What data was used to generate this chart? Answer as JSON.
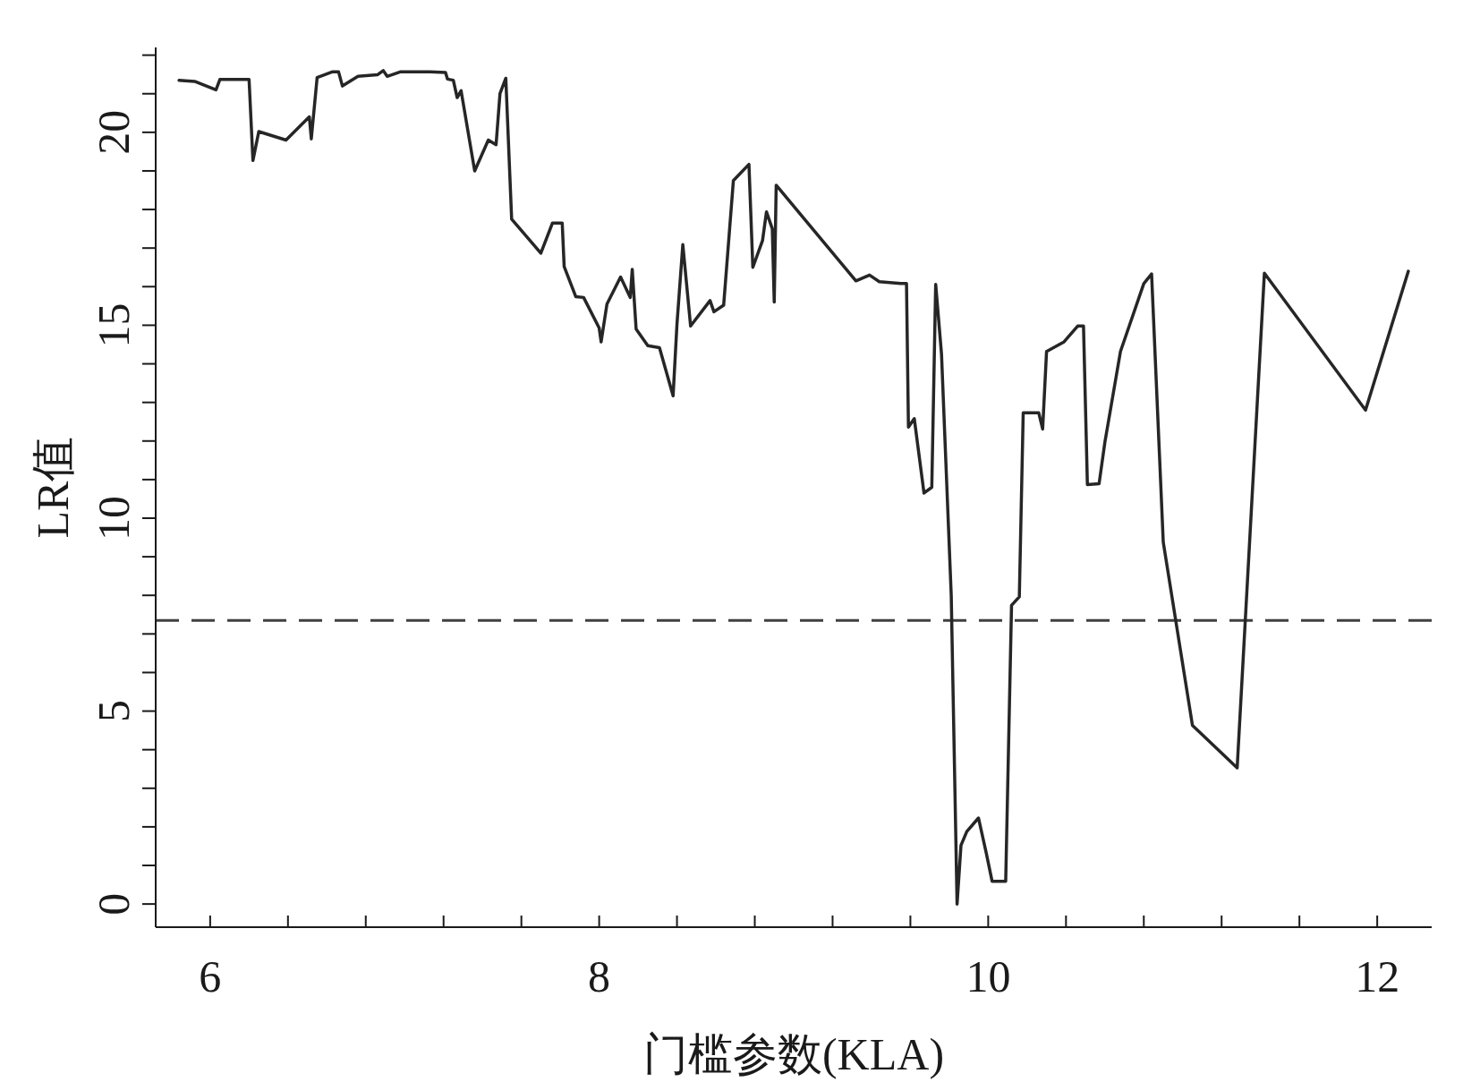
{
  "chart_data": {
    "type": "line",
    "xlabel": "门槛参数(KLA)",
    "ylabel": "LR值",
    "x": [
      5.84,
      5.92,
      6.03,
      6.05,
      6.2,
      6.22,
      6.25,
      6.39,
      6.51,
      6.52,
      6.55,
      6.63,
      6.66,
      6.68,
      6.76,
      6.86,
      6.89,
      6.91,
      6.98,
      7.13,
      7.21,
      7.22,
      7.25,
      7.27,
      7.29,
      7.36,
      7.43,
      7.47,
      7.49,
      7.52,
      7.55,
      7.7,
      7.76,
      7.81,
      7.82,
      7.88,
      7.92,
      8.0,
      8.01,
      8.04,
      8.11,
      8.16,
      8.17,
      8.19,
      8.25,
      8.31,
      8.38,
      8.4,
      8.43,
      8.47,
      8.57,
      8.59,
      8.64,
      8.69,
      8.77,
      8.79,
      8.84,
      8.86,
      8.89,
      8.9,
      8.91,
      9.32,
      9.39,
      9.44,
      9.55,
      9.58,
      9.59,
      9.62,
      9.67,
      9.71,
      9.73,
      9.76,
      9.81,
      9.84,
      9.86,
      9.89,
      9.95,
      9.99,
      10.02,
      10.09,
      10.12,
      10.16,
      10.18,
      10.26,
      10.28,
      10.3,
      10.39,
      10.46,
      10.49,
      10.51,
      10.57,
      10.6,
      10.68,
      10.8,
      10.84,
      10.9,
      11.05,
      11.28,
      11.42,
      11.94,
      12.16
    ],
    "series": [
      {
        "color": "#262626",
        "values": [
          21.35,
          21.32,
          21.1,
          21.37,
          21.37,
          19.27,
          20.02,
          19.8,
          20.4,
          19.83,
          21.42,
          21.57,
          21.57,
          21.2,
          21.45,
          21.49,
          21.6,
          21.45,
          21.57,
          21.57,
          21.55,
          21.38,
          21.35,
          20.9,
          21.08,
          19.0,
          19.8,
          19.68,
          21.0,
          21.4,
          17.75,
          16.87,
          17.65,
          17.65,
          16.52,
          15.74,
          15.72,
          14.93,
          14.57,
          15.55,
          16.25,
          15.72,
          16.45,
          14.9,
          14.47,
          14.42,
          13.17,
          15.03,
          17.09,
          14.98,
          15.64,
          15.35,
          15.52,
          18.75,
          19.17,
          16.5,
          17.2,
          17.94,
          17.5,
          15.6,
          18.63,
          16.15,
          16.3,
          16.13,
          16.08,
          16.08,
          12.36,
          12.58,
          10.65,
          10.8,
          16.06,
          14.25,
          8.0,
          0.0,
          1.52,
          1.88,
          2.23,
          1.32,
          0.59,
          0.59,
          7.74,
          7.96,
          12.73,
          12.73,
          12.31,
          14.32,
          14.57,
          14.98,
          14.98,
          10.87,
          10.89,
          11.97,
          14.32,
          16.08,
          16.33,
          9.38,
          4.63,
          3.53,
          16.35,
          12.8,
          16.4
        ]
      }
    ],
    "xlim": [
      5.72,
      12.28
    ],
    "ylim": [
      -0.6,
      22.2
    ],
    "xticks": [
      6,
      {
        "value": 6.4,
        "label": null
      },
      {
        "value": 6.8,
        "label": null
      },
      {
        "value": 7.2,
        "label": null
      },
      {
        "value": 7.6,
        "label": null
      },
      8,
      {
        "value": 8.4,
        "label": null
      },
      {
        "value": 8.8,
        "label": null
      },
      {
        "value": 9.2,
        "label": null
      },
      {
        "value": 9.6,
        "label": null
      },
      10,
      {
        "value": 10.4,
        "label": null
      },
      {
        "value": 10.8,
        "label": null
      },
      {
        "value": 11.2,
        "label": null
      },
      {
        "value": 11.6,
        "label": null
      },
      12
    ],
    "yticks": [
      0,
      {
        "value": 1,
        "label": null
      },
      {
        "value": 2,
        "label": null
      },
      {
        "value": 3,
        "label": null
      },
      {
        "value": 4,
        "label": null
      },
      5,
      {
        "value": 6,
        "label": null
      },
      {
        "value": 7,
        "label": null
      },
      {
        "value": 8,
        "label": null
      },
      {
        "value": 9,
        "label": null
      },
      10,
      {
        "value": 11,
        "label": null
      },
      {
        "value": 12,
        "label": null
      },
      {
        "value": 13,
        "label": null
      },
      {
        "value": 14,
        "label": null
      },
      15,
      {
        "value": 16,
        "label": null
      },
      {
        "value": 17,
        "label": null
      },
      {
        "value": 18,
        "label": null
      },
      {
        "value": 19,
        "label": null
      },
      20,
      {
        "value": 21,
        "label": null
      },
      {
        "value": 22,
        "label": null
      }
    ],
    "ref_lines": [
      {
        "axis": "y",
        "value": 7.35,
        "color": "#404040",
        "line_style": "dashed"
      }
    ]
  }
}
